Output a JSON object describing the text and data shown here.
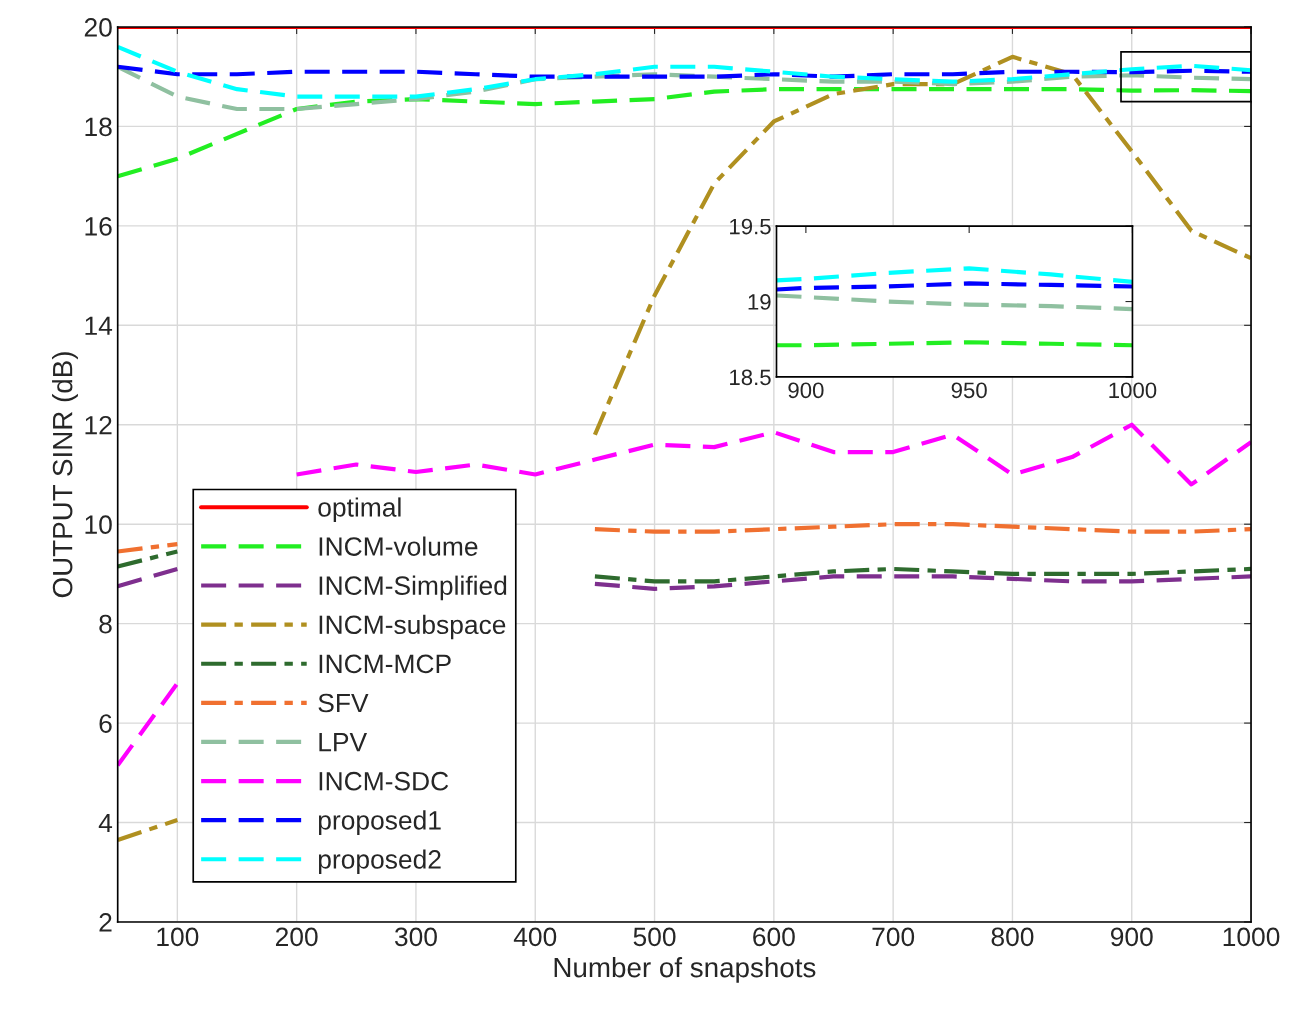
{
  "chart_data": [
    {
      "type": "line",
      "xlabel": "Number of snapshots",
      "ylabel": "OUTPUT SINR (dB)",
      "x": [
        50,
        100,
        150,
        200,
        250,
        300,
        350,
        400,
        450,
        500,
        550,
        600,
        650,
        700,
        750,
        800,
        850,
        900,
        950,
        1000
      ],
      "xlim": [
        50,
        1000
      ],
      "xticks": [
        100,
        200,
        300,
        400,
        500,
        600,
        700,
        800,
        900,
        1000
      ],
      "ylim": [
        2,
        20
      ],
      "yticks": [
        2,
        4,
        6,
        8,
        10,
        12,
        14,
        16,
        18,
        20
      ],
      "grid": true,
      "legend": "bottom left",
      "marker": "none",
      "series": [
        {
          "name": "optimal",
          "color": "#ff0000",
          "line_style": "solid",
          "values": [
            20,
            20,
            20,
            20,
            20,
            20,
            20,
            20,
            20,
            20,
            20,
            20,
            20,
            20,
            20,
            20,
            20,
            20,
            20,
            20
          ]
        },
        {
          "name": "INCM-volume",
          "color": "#22ee22",
          "line_style": "dashed",
          "values": [
            17.0,
            17.35,
            17.85,
            18.35,
            18.5,
            18.55,
            18.5,
            18.45,
            18.5,
            18.55,
            18.7,
            18.75,
            18.75,
            18.75,
            18.75,
            18.75,
            18.75,
            18.72,
            18.73,
            18.71
          ]
        },
        {
          "name": "INCM-Simplified",
          "color": "#7e2f8e",
          "line_style": "dashed",
          "values": [
            8.75,
            9.1,
            null,
            null,
            null,
            null,
            null,
            null,
            8.8,
            8.7,
            8.75,
            8.85,
            8.95,
            8.95,
            8.95,
            8.9,
            8.85,
            8.85,
            8.9,
            8.95
          ]
        },
        {
          "name": "INCM-subspace",
          "color": "#b09020",
          "line_style": "dashdot",
          "values": [
            3.65,
            4.05,
            null,
            null,
            null,
            null,
            null,
            null,
            11.8,
            14.6,
            16.85,
            18.1,
            18.65,
            18.85,
            18.85,
            19.4,
            19.05,
            17.5,
            15.9,
            15.35
          ]
        },
        {
          "name": "INCM-MCP",
          "color": "#2e6b2e",
          "line_style": "dashdot",
          "values": [
            9.15,
            9.45,
            null,
            null,
            null,
            null,
            null,
            null,
            8.95,
            8.85,
            8.85,
            8.95,
            9.05,
            9.1,
            9.05,
            9.0,
            9.0,
            9.0,
            9.05,
            9.1
          ]
        },
        {
          "name": "SFV",
          "color": "#f07030",
          "line_style": "dashdot",
          "values": [
            9.45,
            9.6,
            null,
            null,
            null,
            null,
            null,
            null,
            9.9,
            9.85,
            9.85,
            9.9,
            9.95,
            10.0,
            10.0,
            9.95,
            9.9,
            9.85,
            9.85,
            9.9
          ]
        },
        {
          "name": "LPV",
          "color": "#8fc0a0",
          "line_style": "dashed",
          "values": [
            19.2,
            18.6,
            18.35,
            18.35,
            18.45,
            18.55,
            18.7,
            18.95,
            19.0,
            19.05,
            19.0,
            18.95,
            18.9,
            18.9,
            18.85,
            18.9,
            19.0,
            19.03,
            18.98,
            18.95
          ]
        },
        {
          "name": "INCM-SDC",
          "color": "#ff00ff",
          "line_style": "dashed",
          "values": [
            5.15,
            6.8,
            null,
            11.0,
            11.2,
            11.05,
            11.2,
            11.0,
            11.3,
            11.6,
            11.55,
            11.85,
            11.45,
            11.45,
            11.8,
            11.0,
            11.35,
            12.0,
            10.8,
            11.65
          ]
        },
        {
          "name": "proposed1",
          "color": "#0000ff",
          "line_style": "dashed",
          "values": [
            19.2,
            19.05,
            19.05,
            19.1,
            19.1,
            19.1,
            19.05,
            19.0,
            19.0,
            19.0,
            19.0,
            19.05,
            19.0,
            19.05,
            19.05,
            19.1,
            19.1,
            19.09,
            19.12,
            19.1
          ]
        },
        {
          "name": "proposed2",
          "color": "#00ffff",
          "line_style": "dashed",
          "values": [
            19.6,
            19.1,
            18.75,
            18.6,
            18.6,
            18.6,
            18.75,
            18.95,
            19.05,
            19.2,
            19.2,
            19.1,
            19.0,
            18.95,
            18.9,
            18.95,
            19.05,
            19.15,
            19.22,
            19.13
          ]
        }
      ]
    },
    {
      "type": "line",
      "x": [
        891,
        900,
        925,
        950,
        975,
        1000
      ],
      "xlim": [
        891,
        1000
      ],
      "xticks": [
        900,
        950,
        1000
      ],
      "ylim": [
        18.5,
        19.5
      ],
      "yticks": [
        18.5,
        19,
        19.5
      ],
      "grid": false,
      "marker": "none",
      "series": [
        {
          "color": "#22ee22",
          "line_style": "dashed",
          "values": [
            18.71,
            18.71,
            18.72,
            18.73,
            18.72,
            18.71
          ]
        },
        {
          "color": "#8fc0a0",
          "line_style": "dashed",
          "values": [
            19.04,
            19.03,
            19.0,
            18.98,
            18.97,
            18.95
          ]
        },
        {
          "color": "#0000ff",
          "line_style": "dashed",
          "values": [
            19.08,
            19.09,
            19.1,
            19.12,
            19.11,
            19.1
          ]
        },
        {
          "color": "#00ffff",
          "line_style": "dashed",
          "values": [
            19.14,
            19.15,
            19.19,
            19.22,
            19.18,
            19.13
          ]
        }
      ]
    }
  ]
}
